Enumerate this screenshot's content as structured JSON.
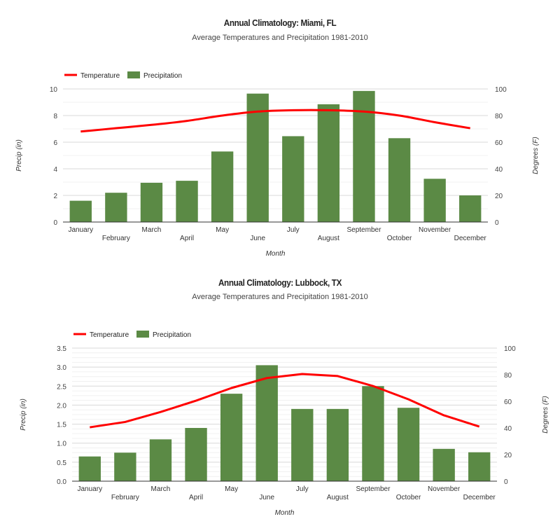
{
  "chart_data": [
    {
      "type": "bar+line",
      "title": "Annual Climatology: Miami, FL",
      "subtitle": "Average Temperatures and Precipitation 1981-2010",
      "xlabel": "Month",
      "ylabel_left": "Precip (in)",
      "ylabel_right": "Degrees (F)",
      "categories": [
        "January",
        "February",
        "March",
        "April",
        "May",
        "June",
        "July",
        "August",
        "September",
        "October",
        "November",
        "December"
      ],
      "ylim_left": [
        0,
        10
      ],
      "yticks_left": [
        "0",
        "2",
        "4",
        "6",
        "8",
        "10"
      ],
      "ylim_right": [
        0,
        100
      ],
      "yticks_right": [
        "0",
        "20",
        "40",
        "60",
        "80",
        "100"
      ],
      "legend_position": "top-left",
      "grid": true,
      "series": [
        {
          "name": "Temperature",
          "type": "line",
          "axis": "right",
          "color": "#ff0000",
          "values": [
            68,
            70.5,
            73,
            76,
            80,
            83,
            84,
            84,
            83,
            80,
            75,
            70.5
          ]
        },
        {
          "name": "Precipitation",
          "type": "bar",
          "axis": "left",
          "color": "#5b8a45",
          "values": [
            1.6,
            2.2,
            2.95,
            3.1,
            5.3,
            9.65,
            6.45,
            8.85,
            9.85,
            6.3,
            3.25,
            2.0
          ]
        }
      ]
    },
    {
      "type": "bar+line",
      "title": "Annual Climatology: Lubbock, TX",
      "subtitle": "Average Temperatures and Precipitation 1981-2010",
      "xlabel": "Month",
      "ylabel_left": "Precip (in)",
      "ylabel_right": "Degrees (F)",
      "categories": [
        "January",
        "February",
        "March",
        "April",
        "May",
        "June",
        "July",
        "August",
        "September",
        "October",
        "November",
        "December"
      ],
      "ylim_left": [
        0,
        3.5
      ],
      "yticks_left": [
        "0.0",
        "0.5",
        "1.0",
        "1.5",
        "2.0",
        "2.5",
        "3.0",
        "3.5"
      ],
      "ylim_right": [
        0,
        100
      ],
      "yticks_right": [
        "0",
        "20",
        "40",
        "60",
        "80",
        "100"
      ],
      "legend_position": "top-left",
      "grid": true,
      "series": [
        {
          "name": "Temperature",
          "type": "line",
          "axis": "right",
          "color": "#ff0000",
          "values": [
            40.5,
            44.5,
            52,
            60.5,
            70,
            77.5,
            80.5,
            79,
            71.5,
            61.5,
            49.5,
            41
          ]
        },
        {
          "name": "Precipitation",
          "type": "bar",
          "axis": "left",
          "color": "#5b8a45",
          "values": [
            0.65,
            0.75,
            1.1,
            1.4,
            2.3,
            3.05,
            1.9,
            1.9,
            2.5,
            1.93,
            0.85,
            0.76
          ]
        }
      ]
    }
  ]
}
